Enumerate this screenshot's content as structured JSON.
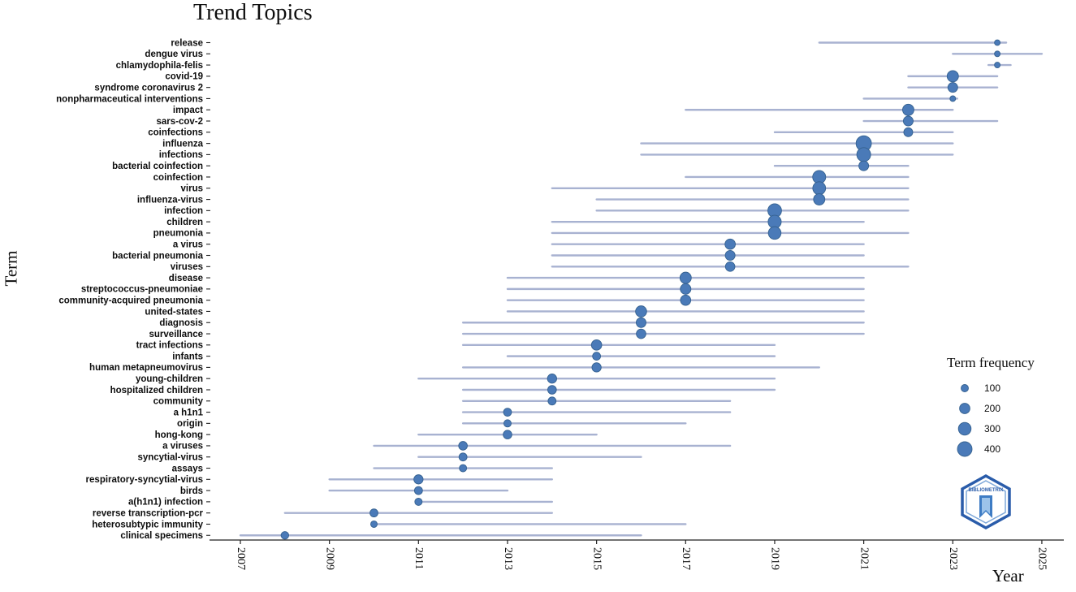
{
  "title": "Trend Topics",
  "axes": {
    "x_label": "Year",
    "y_label": "Term"
  },
  "legend": {
    "title": "Term frequency",
    "sizes": [
      100,
      200,
      300,
      400
    ]
  },
  "logo": {
    "label": "BIBLIOMETRIX"
  },
  "colors": {
    "dot_fill": "#4a7ab8",
    "dot_stroke": "#35618f",
    "segment": "#a8b2d1",
    "axis": "#222222",
    "label_text": "#0d0d0d"
  },
  "chart_data": {
    "type": "scatter",
    "title": "Trend Topics",
    "xlabel": "Year",
    "ylabel": "Term",
    "x_ticks": [
      2007,
      2009,
      2011,
      2013,
      2015,
      2017,
      2019,
      2021,
      2023,
      2025
    ],
    "xlim": [
      2006.3,
      2025.6
    ],
    "legend_title": "Term frequency",
    "legend_sizes": [
      100,
      200,
      300,
      400
    ],
    "note": "Each row: term frequency (bubble size), first-quartile year, median year (bubble), third-quartile year (line extent). Values estimated from plot.",
    "terms": [
      {
        "term": "release",
        "freq": 60,
        "year_q1": 2020,
        "year_med": 2024,
        "year_q3": 2024.2
      },
      {
        "term": "dengue virus",
        "freq": 60,
        "year_q1": 2023,
        "year_med": 2024,
        "year_q3": 2025
      },
      {
        "term": "chlamydophila-felis",
        "freq": 60,
        "year_q1": 2023.8,
        "year_med": 2024,
        "year_q3": 2024.3
      },
      {
        "term": "covid-19",
        "freq": 240,
        "year_q1": 2022,
        "year_med": 2023,
        "year_q3": 2024
      },
      {
        "term": "syndrome coronavirus 2",
        "freq": 180,
        "year_q1": 2022,
        "year_med": 2023,
        "year_q3": 2024
      },
      {
        "term": "nonpharmaceutical interventions",
        "freq": 60,
        "year_q1": 2021,
        "year_med": 2023,
        "year_q3": 2023.1
      },
      {
        "term": "impact",
        "freq": 240,
        "year_q1": 2017,
        "year_med": 2022,
        "year_q3": 2023
      },
      {
        "term": "sars-cov-2",
        "freq": 180,
        "year_q1": 2021,
        "year_med": 2022,
        "year_q3": 2024
      },
      {
        "term": "coinfections",
        "freq": 150,
        "year_q1": 2019,
        "year_med": 2022,
        "year_q3": 2023
      },
      {
        "term": "influenza",
        "freq": 440,
        "year_q1": 2016,
        "year_med": 2021,
        "year_q3": 2023
      },
      {
        "term": "infections",
        "freq": 360,
        "year_q1": 2016,
        "year_med": 2021,
        "year_q3": 2023
      },
      {
        "term": "bacterial coinfection",
        "freq": 180,
        "year_q1": 2019,
        "year_med": 2021,
        "year_q3": 2022
      },
      {
        "term": "coinfection",
        "freq": 320,
        "year_q1": 2017,
        "year_med": 2020,
        "year_q3": 2022
      },
      {
        "term": "virus",
        "freq": 310,
        "year_q1": 2014,
        "year_med": 2020,
        "year_q3": 2022
      },
      {
        "term": "influenza-virus",
        "freq": 240,
        "year_q1": 2015,
        "year_med": 2020,
        "year_q3": 2022
      },
      {
        "term": "infection",
        "freq": 350,
        "year_q1": 2015,
        "year_med": 2019,
        "year_q3": 2022
      },
      {
        "term": "children",
        "freq": 320,
        "year_q1": 2014,
        "year_med": 2019,
        "year_q3": 2021
      },
      {
        "term": "pneumonia",
        "freq": 300,
        "year_q1": 2014,
        "year_med": 2019,
        "year_q3": 2022
      },
      {
        "term": "a virus",
        "freq": 200,
        "year_q1": 2014,
        "year_med": 2018,
        "year_q3": 2021
      },
      {
        "term": "bacterial pneumonia",
        "freq": 180,
        "year_q1": 2014,
        "year_med": 2018,
        "year_q3": 2021
      },
      {
        "term": "viruses",
        "freq": 170,
        "year_q1": 2014,
        "year_med": 2018,
        "year_q3": 2022
      },
      {
        "term": "disease",
        "freq": 240,
        "year_q1": 2013,
        "year_med": 2017,
        "year_q3": 2021
      },
      {
        "term": "streptococcus-pneumoniae",
        "freq": 210,
        "year_q1": 2013,
        "year_med": 2017,
        "year_q3": 2021
      },
      {
        "term": "community-acquired pneumonia",
        "freq": 200,
        "year_q1": 2013,
        "year_med": 2017,
        "year_q3": 2021
      },
      {
        "term": "united-states",
        "freq": 230,
        "year_q1": 2013,
        "year_med": 2016,
        "year_q3": 2021
      },
      {
        "term": "diagnosis",
        "freq": 180,
        "year_q1": 2012,
        "year_med": 2016,
        "year_q3": 2021
      },
      {
        "term": "surveillance",
        "freq": 170,
        "year_q1": 2012,
        "year_med": 2016,
        "year_q3": 2021
      },
      {
        "term": "tract infections",
        "freq": 200,
        "year_q1": 2012,
        "year_med": 2015,
        "year_q3": 2019
      },
      {
        "term": "infants",
        "freq": 120,
        "year_q1": 2013,
        "year_med": 2015,
        "year_q3": 2019
      },
      {
        "term": "human metapneumovirus",
        "freq": 160,
        "year_q1": 2012,
        "year_med": 2015,
        "year_q3": 2020
      },
      {
        "term": "young-children",
        "freq": 160,
        "year_q1": 2011,
        "year_med": 2014,
        "year_q3": 2019
      },
      {
        "term": "hospitalized children",
        "freq": 140,
        "year_q1": 2012,
        "year_med": 2014,
        "year_q3": 2019
      },
      {
        "term": "community",
        "freq": 120,
        "year_q1": 2012,
        "year_med": 2014,
        "year_q3": 2018
      },
      {
        "term": "a h1n1",
        "freq": 120,
        "year_q1": 2012,
        "year_med": 2013,
        "year_q3": 2018
      },
      {
        "term": "origin",
        "freq": 100,
        "year_q1": 2012,
        "year_med": 2013,
        "year_q3": 2017
      },
      {
        "term": "hong-kong",
        "freq": 140,
        "year_q1": 2011,
        "year_med": 2013,
        "year_q3": 2015
      },
      {
        "term": "a viruses",
        "freq": 140,
        "year_q1": 2010,
        "year_med": 2012,
        "year_q3": 2018
      },
      {
        "term": "syncytial-virus",
        "freq": 120,
        "year_q1": 2011,
        "year_med": 2012,
        "year_q3": 2016
      },
      {
        "term": "assays",
        "freq": 100,
        "year_q1": 2010,
        "year_med": 2012,
        "year_q3": 2014
      },
      {
        "term": "respiratory-syncytial-virus",
        "freq": 160,
        "year_q1": 2009,
        "year_med": 2011,
        "year_q3": 2014
      },
      {
        "term": "birds",
        "freq": 120,
        "year_q1": 2009,
        "year_med": 2011,
        "year_q3": 2013
      },
      {
        "term": "a(h1n1) infection",
        "freq": 100,
        "year_q1": 2011,
        "year_med": 2011,
        "year_q3": 2014
      },
      {
        "term": "reverse transcription-pcr",
        "freq": 120,
        "year_q1": 2008,
        "year_med": 2010,
        "year_q3": 2014
      },
      {
        "term": "heterosubtypic immunity",
        "freq": 80,
        "year_q1": 2010,
        "year_med": 2010,
        "year_q3": 2017
      },
      {
        "term": "clinical specimens",
        "freq": 110,
        "year_q1": 2007,
        "year_med": 2008,
        "year_q3": 2016
      }
    ]
  }
}
